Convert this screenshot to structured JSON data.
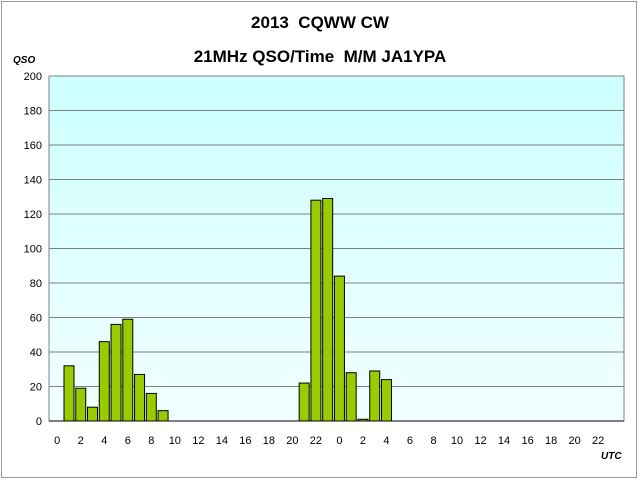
{
  "chart_data": {
    "type": "bar",
    "title": "2013  CQWW CW",
    "subtitle": "21MHz QSO/Time  M/M JA1YPA",
    "ylabel": "QSO",
    "xlabel": "UTC",
    "ylim": [
      0,
      200
    ],
    "y_ticks": [
      "0",
      "20",
      "40",
      "60",
      "80",
      "100",
      "120",
      "140",
      "160",
      "180",
      "200"
    ],
    "x_tick_labels": [
      "0",
      "2",
      "4",
      "6",
      "8",
      "10",
      "12",
      "14",
      "16",
      "18",
      "20",
      "22",
      "0",
      "2",
      "4",
      "6",
      "8",
      "10",
      "12",
      "14",
      "16",
      "18",
      "20",
      "22"
    ],
    "hours": 48,
    "values": [
      0,
      32,
      19,
      8,
      46,
      56,
      59,
      27,
      16,
      6,
      0,
      0,
      0,
      0,
      0,
      0,
      0,
      0,
      0,
      0,
      0,
      22,
      128,
      129,
      84,
      28,
      1,
      29,
      24,
      0,
      0,
      0,
      0,
      0,
      0,
      0,
      0,
      0,
      0,
      0,
      0,
      0,
      0,
      0,
      0,
      0,
      0,
      0
    ],
    "grid": true,
    "legend": "none",
    "colors": {
      "bar_fill": "#99cc00",
      "bar_stroke": "#000000",
      "plot_bg_top": "#ccffff",
      "plot_bg_bottom": "#f2ffff",
      "gridline": "#7f7f7f"
    }
  }
}
